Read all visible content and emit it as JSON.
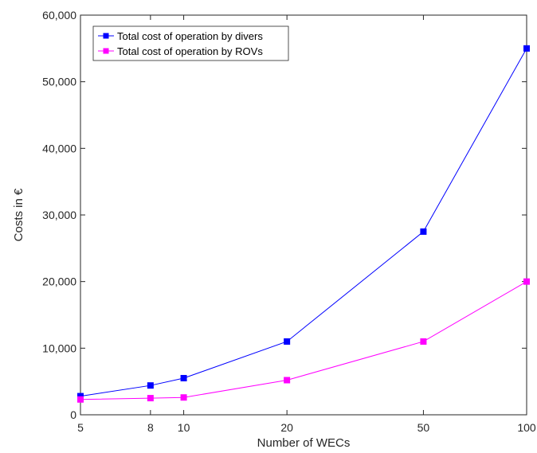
{
  "chart_data": {
    "type": "line",
    "xscale": "log",
    "x": [
      5,
      8,
      10,
      20,
      50,
      100
    ],
    "xticks": [
      "5",
      "8",
      "10",
      "20",
      "50",
      "100"
    ],
    "xlim": [
      5,
      100
    ],
    "ylim": [
      0,
      60000
    ],
    "yticks": [
      "0",
      "10,000",
      "20,000",
      "30,000",
      "40,000",
      "50,000",
      "60,000"
    ],
    "xlabel": "Number of WECs",
    "ylabel": "Costs in €",
    "grid": false,
    "legend_position": "top-left",
    "series": [
      {
        "name": "Total cost of operation by divers",
        "color": "#0000ff",
        "values": [
          2800,
          4400,
          5500,
          11000,
          27500,
          55000
        ]
      },
      {
        "name": "Total cost of operation by ROVs",
        "color": "#ff00ff",
        "values": [
          2300,
          2500,
          2600,
          5200,
          11000,
          20000
        ]
      }
    ]
  }
}
